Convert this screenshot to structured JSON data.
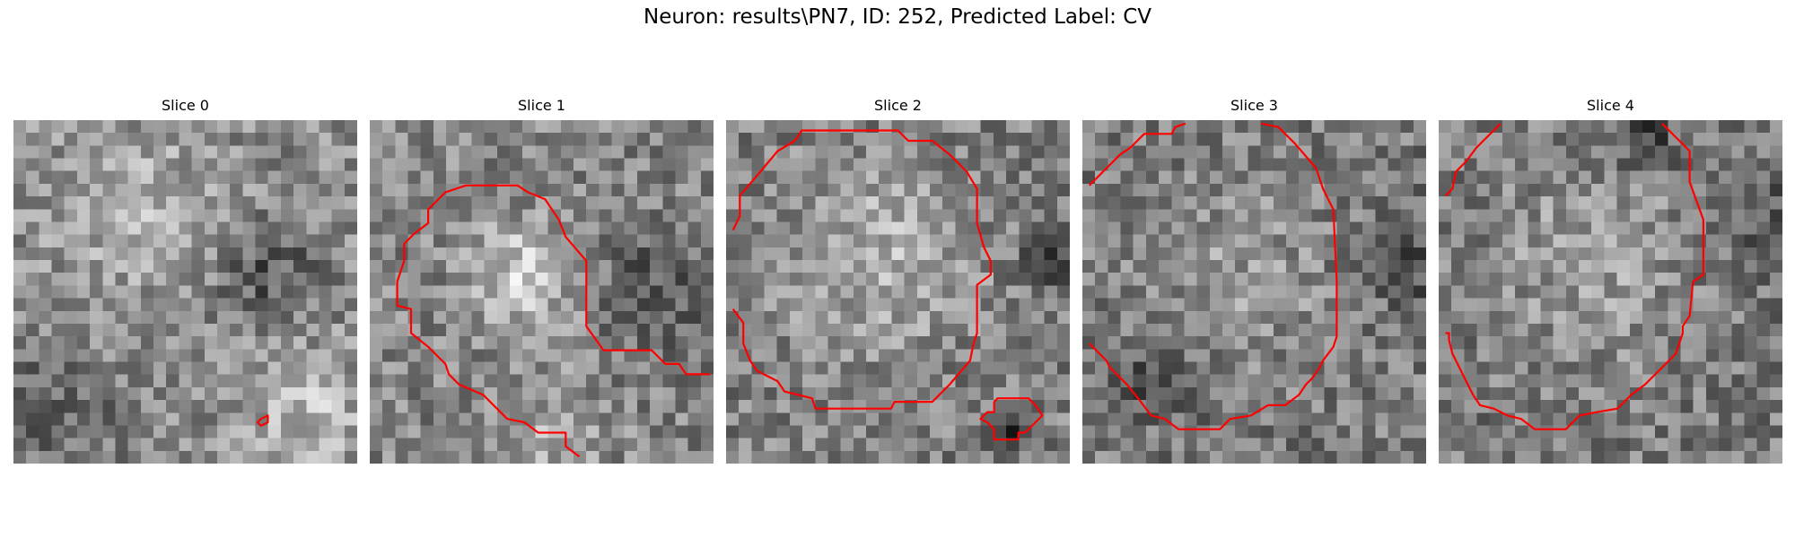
{
  "figure": {
    "title": "Neuron: results\\PN7, ID: 252, Predicted Label: CV"
  },
  "panels": [
    {
      "title": "Slice 0"
    },
    {
      "title": "Slice 1"
    },
    {
      "title": "Slice 2"
    },
    {
      "title": "Slice 3"
    },
    {
      "title": "Slice 4"
    }
  ],
  "contour_color": "#ff0000",
  "colormap": "gray"
}
